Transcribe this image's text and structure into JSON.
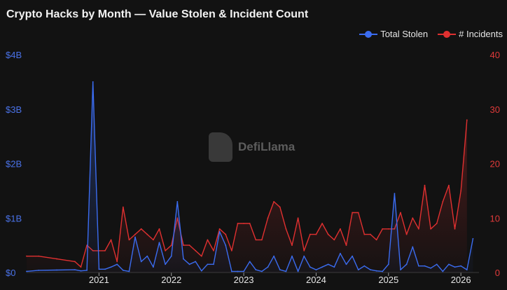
{
  "header": {
    "title": "Crypto Hacks by Month — Value Stolen & Incident Count"
  },
  "legend": {
    "stolen": "Total Stolen",
    "incidents": "# Incidents"
  },
  "watermark": {
    "text": "DefiLlama",
    "icon": "llama-logo"
  },
  "colors": {
    "stolen": "#3b6cf0",
    "incidents": "#e03030",
    "background": "#121212"
  },
  "chart_data": {
    "type": "line",
    "title": "Crypto Hacks by Month — Value Stolen & Incident Count",
    "x_ticks": [
      "2021",
      "2022",
      "2023",
      "2024",
      "2025",
      "2026"
    ],
    "x_range": [
      "2020-01",
      "2026-04"
    ],
    "y_left": {
      "range": [
        0,
        4000000000
      ],
      "ticks": [
        "$0",
        "$1B",
        "$2B",
        "$3B",
        "$4B"
      ],
      "tick_values": [
        0,
        1000000000,
        2000000000,
        3000000000,
        4000000000
      ]
    },
    "y_right": {
      "range": [
        0,
        40
      ],
      "ticks": [
        "0",
        "10",
        "20",
        "30",
        "40"
      ],
      "tick_values": [
        0,
        10,
        20,
        30,
        40
      ]
    },
    "grid": false,
    "legend_position": "top-right",
    "series": [
      {
        "name": "Total Stolen",
        "axis": "left",
        "color": "#3b6cf0",
        "points": [
          [
            "2020-01",
            20000000
          ],
          [
            "2020-03",
            40000000
          ],
          [
            "2020-06",
            45000000
          ],
          [
            "2020-09",
            50000000
          ],
          [
            "2020-10",
            30000000
          ],
          [
            "2020-11",
            40000000
          ],
          [
            "2020-12",
            3500000000
          ],
          [
            "2021-01",
            60000000
          ],
          [
            "2021-02",
            60000000
          ],
          [
            "2021-03",
            100000000
          ],
          [
            "2021-04",
            150000000
          ],
          [
            "2021-05",
            40000000
          ],
          [
            "2021-06",
            20000000
          ],
          [
            "2021-07",
            650000000
          ],
          [
            "2021-08",
            200000000
          ],
          [
            "2021-09",
            300000000
          ],
          [
            "2021-10",
            100000000
          ],
          [
            "2021-11",
            550000000
          ],
          [
            "2021-12",
            150000000
          ],
          [
            "2022-01",
            300000000
          ],
          [
            "2022-02",
            1300000000
          ],
          [
            "2022-03",
            250000000
          ],
          [
            "2022-04",
            150000000
          ],
          [
            "2022-05",
            200000000
          ],
          [
            "2022-06",
            30000000
          ],
          [
            "2022-07",
            150000000
          ],
          [
            "2022-08",
            150000000
          ],
          [
            "2022-09",
            750000000
          ],
          [
            "2022-10",
            500000000
          ],
          [
            "2022-11",
            20000000
          ],
          [
            "2022-12",
            20000000
          ],
          [
            "2023-01",
            20000000
          ],
          [
            "2023-02",
            200000000
          ],
          [
            "2023-03",
            50000000
          ],
          [
            "2023-04",
            20000000
          ],
          [
            "2023-05",
            100000000
          ],
          [
            "2023-06",
            300000000
          ],
          [
            "2023-07",
            50000000
          ],
          [
            "2023-08",
            20000000
          ],
          [
            "2023-09",
            300000000
          ],
          [
            "2023-10",
            20000000
          ],
          [
            "2023-11",
            300000000
          ],
          [
            "2023-12",
            100000000
          ],
          [
            "2024-01",
            50000000
          ],
          [
            "2024-02",
            100000000
          ],
          [
            "2024-03",
            150000000
          ],
          [
            "2024-04",
            100000000
          ],
          [
            "2024-05",
            350000000
          ],
          [
            "2024-06",
            150000000
          ],
          [
            "2024-07",
            300000000
          ],
          [
            "2024-08",
            50000000
          ],
          [
            "2024-09",
            120000000
          ],
          [
            "2024-10",
            50000000
          ],
          [
            "2024-11",
            30000000
          ],
          [
            "2024-12",
            20000000
          ],
          [
            "2025-01",
            150000000
          ],
          [
            "2025-02",
            1450000000
          ],
          [
            "2025-03",
            50000000
          ],
          [
            "2025-04",
            150000000
          ],
          [
            "2025-05",
            470000000
          ],
          [
            "2025-06",
            120000000
          ],
          [
            "2025-07",
            120000000
          ],
          [
            "2025-08",
            80000000
          ],
          [
            "2025-09",
            150000000
          ],
          [
            "2025-10",
            20000000
          ],
          [
            "2025-11",
            150000000
          ],
          [
            "2025-12",
            100000000
          ],
          [
            "2026-01",
            120000000
          ],
          [
            "2026-02",
            50000000
          ],
          [
            "2026-03",
            620000000
          ]
        ]
      },
      {
        "name": "# Incidents",
        "axis": "right",
        "color": "#e03030",
        "points": [
          [
            "2020-01",
            3
          ],
          [
            "2020-03",
            3
          ],
          [
            "2020-06",
            2.5
          ],
          [
            "2020-09",
            2
          ],
          [
            "2020-10",
            1
          ],
          [
            "2020-11",
            5
          ],
          [
            "2020-12",
            4
          ],
          [
            "2021-01",
            4
          ],
          [
            "2021-02",
            4
          ],
          [
            "2021-03",
            6
          ],
          [
            "2021-04",
            2
          ],
          [
            "2021-05",
            12
          ],
          [
            "2021-06",
            6
          ],
          [
            "2021-07",
            7
          ],
          [
            "2021-08",
            8
          ],
          [
            "2021-09",
            7
          ],
          [
            "2021-10",
            6
          ],
          [
            "2021-11",
            8
          ],
          [
            "2021-12",
            4
          ],
          [
            "2022-01",
            5
          ],
          [
            "2022-02",
            10
          ],
          [
            "2022-03",
            5
          ],
          [
            "2022-04",
            5
          ],
          [
            "2022-05",
            4
          ],
          [
            "2022-06",
            3
          ],
          [
            "2022-07",
            6
          ],
          [
            "2022-08",
            4
          ],
          [
            "2022-09",
            8
          ],
          [
            "2022-10",
            7
          ],
          [
            "2022-11",
            4
          ],
          [
            "2022-12",
            9
          ],
          [
            "2023-01",
            9
          ],
          [
            "2023-02",
            9
          ],
          [
            "2023-03",
            6
          ],
          [
            "2023-04",
            6
          ],
          [
            "2023-05",
            10
          ],
          [
            "2023-06",
            13
          ],
          [
            "2023-07",
            12
          ],
          [
            "2023-08",
            8
          ],
          [
            "2023-09",
            5
          ],
          [
            "2023-10",
            10
          ],
          [
            "2023-11",
            4
          ],
          [
            "2023-12",
            7
          ],
          [
            "2024-01",
            7
          ],
          [
            "2024-02",
            9
          ],
          [
            "2024-03",
            7
          ],
          [
            "2024-04",
            6
          ],
          [
            "2024-05",
            8
          ],
          [
            "2024-06",
            5
          ],
          [
            "2024-07",
            11
          ],
          [
            "2024-08",
            11
          ],
          [
            "2024-09",
            7
          ],
          [
            "2024-10",
            7
          ],
          [
            "2024-11",
            6
          ],
          [
            "2024-12",
            8
          ],
          [
            "2025-01",
            8
          ],
          [
            "2025-02",
            8
          ],
          [
            "2025-03",
            11
          ],
          [
            "2025-04",
            7
          ],
          [
            "2025-05",
            10
          ],
          [
            "2025-06",
            8
          ],
          [
            "2025-07",
            16
          ],
          [
            "2025-08",
            8
          ],
          [
            "2025-09",
            9
          ],
          [
            "2025-10",
            13
          ],
          [
            "2025-11",
            16
          ],
          [
            "2025-12",
            8
          ],
          [
            "2026-01",
            15
          ],
          [
            "2026-02",
            28
          ]
        ]
      }
    ]
  }
}
